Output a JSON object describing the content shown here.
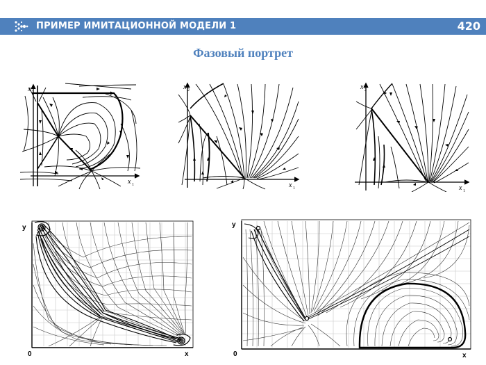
{
  "header": {
    "title": "ПРИМЕР ИМИТАЦИОННОЙ МОДЕЛИ 1",
    "page_number": "420",
    "logo_icon": "arrow-dots-icon",
    "bar_color": "#4f81bd"
  },
  "subtitle": "Фазовый портрет",
  "portraits_top": [
    {
      "x_label": "x",
      "x_sub": "1",
      "y_label": "x",
      "y_sub": "2"
    },
    {
      "x_label": "x",
      "x_sub": "1",
      "y_label": "x",
      "y_sub": "2"
    },
    {
      "x_label": "x",
      "x_sub": "1",
      "y_label": "x",
      "y_sub": "2"
    }
  ],
  "portraits_bottom": [
    {
      "x_label": "x",
      "y_label": "y",
      "origin_label": "0"
    },
    {
      "x_label": "x",
      "y_label": "y",
      "origin_label": "0"
    }
  ]
}
